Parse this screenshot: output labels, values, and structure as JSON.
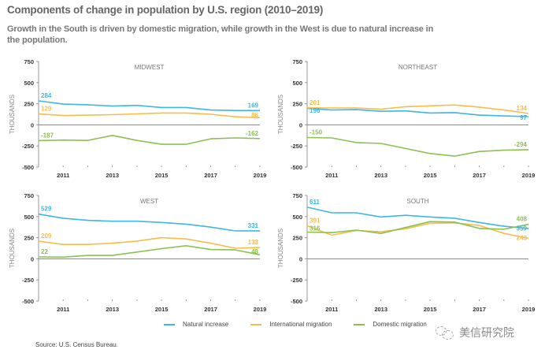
{
  "header": {
    "title": "Components of change in population by U.S. region (2010–2019)",
    "subtitle": "Growth in the South is driven by domestic migration, while growth in the West is due to natural increase in the population."
  },
  "legend": [
    {
      "name": "Natural increase",
      "color": "#3DB7E4"
    },
    {
      "name": "International migration",
      "color": "#F9BC4A"
    },
    {
      "name": "Domestic migration",
      "color": "#8CC152"
    }
  ],
  "source": "Source: U.S. Census Bureau.",
  "watermark": {
    "text": "美信研究院",
    "icon": "wechat-icon"
  },
  "chart_data": [
    {
      "type": "line",
      "title": "MIDWEST",
      "ylabel": "THOUSANDS",
      "xlabel": "",
      "x": [
        2010,
        2011,
        2012,
        2013,
        2014,
        2015,
        2016,
        2017,
        2018,
        2019
      ],
      "xticklabels": [
        "2011",
        "2013",
        "2015",
        "2017",
        "2019"
      ],
      "yticks": [
        750,
        500,
        250,
        0,
        -250,
        -500
      ],
      "ylim": [
        -500,
        750
      ],
      "grid": false,
      "series": [
        {
          "name": "Natural increase",
          "values": [
            284,
            245,
            238,
            222,
            230,
            205,
            205,
            175,
            170,
            169
          ],
          "start_label": "284",
          "end_label": "169"
        },
        {
          "name": "International migration",
          "values": [
            129,
            110,
            115,
            120,
            130,
            140,
            140,
            125,
            95,
            86
          ],
          "start_label": "129",
          "end_label": "86"
        },
        {
          "name": "Domestic migration",
          "values": [
            -187,
            -180,
            -185,
            -125,
            -185,
            -230,
            -230,
            -165,
            -155,
            -162
          ],
          "start_label": "-187",
          "end_label": "-162"
        }
      ]
    },
    {
      "type": "line",
      "title": "NORTHEAST",
      "ylabel": "THOUSANDS",
      "xlabel": "",
      "x": [
        2010,
        2011,
        2012,
        2013,
        2014,
        2015,
        2016,
        2017,
        2018,
        2019
      ],
      "xticklabels": [
        "2011",
        "2013",
        "2015",
        "2017",
        "2019"
      ],
      "yticks": [
        750,
        500,
        250,
        0,
        -250,
        -500
      ],
      "ylim": [
        -500,
        750
      ],
      "grid": false,
      "series": [
        {
          "name": "Natural increase",
          "values": [
            196,
            175,
            180,
            160,
            165,
            140,
            145,
            115,
            105,
            97
          ],
          "start_label": "196",
          "end_label": "97"
        },
        {
          "name": "International migration",
          "values": [
            201,
            200,
            200,
            185,
            215,
            225,
            235,
            210,
            175,
            134
          ],
          "start_label": "201",
          "end_label": "134"
        },
        {
          "name": "Domestic migration",
          "values": [
            -150,
            -155,
            -210,
            -220,
            -280,
            -340,
            -370,
            -315,
            -300,
            -294
          ],
          "start_label": "-150",
          "end_label": "-294"
        }
      ]
    },
    {
      "type": "line",
      "title": "WEST",
      "ylabel": "THOUSANDS",
      "xlabel": "",
      "x": [
        2010,
        2011,
        2012,
        2013,
        2014,
        2015,
        2016,
        2017,
        2018,
        2019
      ],
      "xticklabels": [
        "2011",
        "2013",
        "2015",
        "2017",
        "2019"
      ],
      "yticks": [
        750,
        500,
        250,
        0,
        -250,
        -500
      ],
      "ylim": [
        -500,
        750
      ],
      "grid": false,
      "series": [
        {
          "name": "Natural increase",
          "values": [
            529,
            480,
            455,
            445,
            445,
            430,
            410,
            375,
            330,
            331
          ],
          "start_label": "529",
          "end_label": "331"
        },
        {
          "name": "International migration",
          "values": [
            209,
            170,
            170,
            185,
            210,
            250,
            235,
            185,
            125,
            133
          ],
          "start_label": "209",
          "end_label": "133"
        },
        {
          "name": "Domestic migration",
          "values": [
            22,
            20,
            40,
            40,
            80,
            120,
            155,
            110,
            105,
            48
          ],
          "start_label": "22",
          "end_label": "48"
        }
      ]
    },
    {
      "type": "line",
      "title": "SOUTH",
      "ylabel": "THOUSANDS",
      "xlabel": "",
      "x": [
        2010,
        2011,
        2012,
        2013,
        2014,
        2015,
        2016,
        2017,
        2018,
        2019
      ],
      "xticklabels": [
        "2011",
        "2013",
        "2015",
        "2017",
        "2019"
      ],
      "yticks": [
        750,
        500,
        250,
        0,
        -250,
        -500
      ],
      "ylim": [
        -500,
        750
      ],
      "grid": false,
      "series": [
        {
          "name": "Natural increase",
          "values": [
            611,
            545,
            545,
            495,
            515,
            495,
            480,
            430,
            385,
            359
          ],
          "start_label": "611",
          "end_label": "359"
        },
        {
          "name": "International migration",
          "values": [
            391,
            280,
            335,
            320,
            355,
            420,
            425,
            395,
            300,
            243
          ],
          "start_label": "391",
          "end_label": "243"
        },
        {
          "name": "Domestic migration",
          "values": [
            316,
            310,
            340,
            300,
            370,
            440,
            435,
            360,
            350,
            408
          ],
          "start_label": "316",
          "end_label": "408"
        }
      ]
    }
  ]
}
